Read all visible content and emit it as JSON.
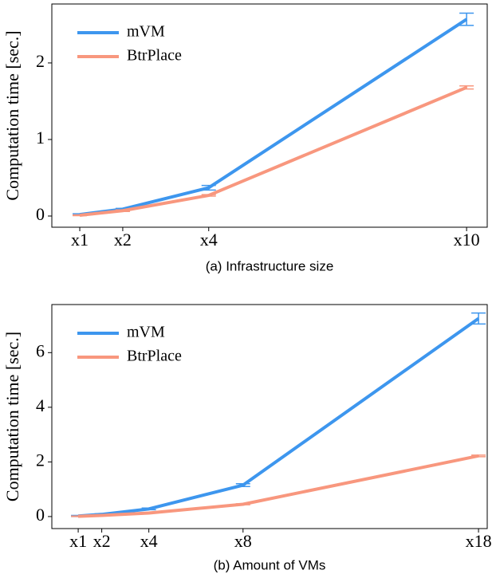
{
  "chart_data": [
    {
      "type": "line",
      "caption": "(a) Infrastructure size",
      "y_label": "Computation time [sec.]",
      "x": [
        1,
        2,
        4,
        10
      ],
      "series": [
        {
          "name": "mVM",
          "color": "#3d96ee",
          "values": [
            0.02,
            0.09,
            0.37,
            2.57
          ],
          "errors": [
            0.01,
            0.01,
            0.03,
            0.08
          ]
        },
        {
          "name": "BtrPlace",
          "color": "#f8977e",
          "values": [
            0.01,
            0.07,
            0.27,
            1.68
          ],
          "errors": [
            0.005,
            0.01,
            0.01,
            0.02
          ]
        }
      ],
      "xlim": [
        0.35,
        10.48
      ],
      "ylim": [
        -0.146,
        2.77
      ],
      "xticks": [
        {
          "value": 1,
          "label": "x1"
        },
        {
          "value": 2,
          "label": "x2"
        },
        {
          "value": 4,
          "label": "x4"
        },
        {
          "value": 10,
          "label": "x10"
        }
      ],
      "yticks": [
        0,
        1,
        2
      ],
      "legend": "upper-left",
      "grid": false
    },
    {
      "type": "line",
      "caption": "(b) Amount of VMs",
      "y_label": "Computation time [sec.]",
      "x": [
        1,
        2,
        4,
        8,
        18
      ],
      "series": [
        {
          "name": "mVM",
          "color": "#3d96ee",
          "values": [
            0.02,
            0.08,
            0.28,
            1.15,
            7.25
          ],
          "errors": [
            0.02,
            0.02,
            0.03,
            0.05,
            0.2
          ]
        },
        {
          "name": "BtrPlace",
          "color": "#f8977e",
          "values": [
            0.01,
            0.04,
            0.13,
            0.45,
            2.22
          ],
          "errors": [
            0.01,
            0.01,
            0.01,
            0.02,
            0.03
          ]
        }
      ],
      "xlim": [
        -0.12,
        18.37
      ],
      "ylim": [
        -0.44,
        7.76
      ],
      "xticks": [
        {
          "value": 1,
          "label": "x1"
        },
        {
          "value": 2,
          "label": "x2"
        },
        {
          "value": 4,
          "label": "x4"
        },
        {
          "value": 8,
          "label": "x8"
        },
        {
          "value": 18,
          "label": "x18"
        }
      ],
      "yticks": [
        0,
        2,
        4,
        6
      ],
      "legend": "upper-left",
      "grid": false
    }
  ]
}
